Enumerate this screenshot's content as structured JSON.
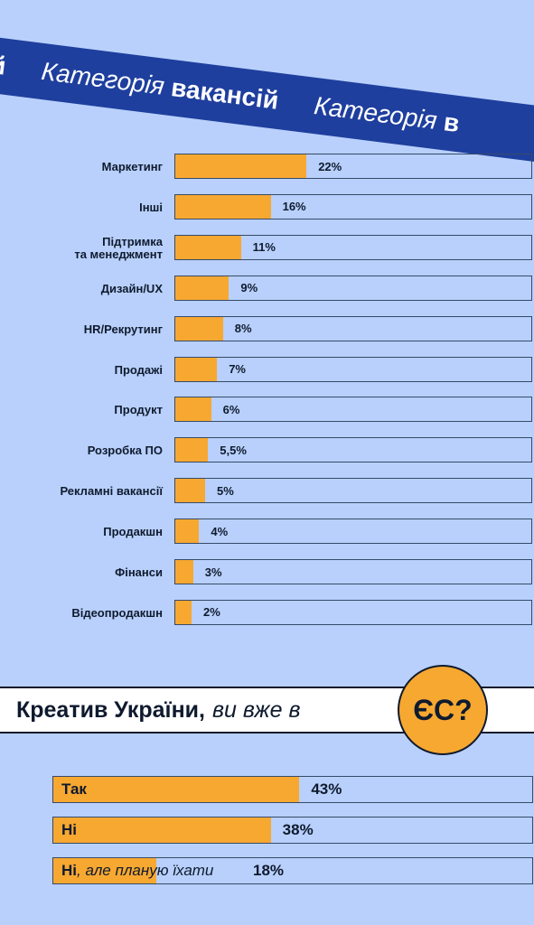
{
  "banner": {
    "segments": [
      {
        "italic": "",
        "bold": "сій"
      },
      {
        "italic": "Категорія",
        "bold": "вакансій"
      },
      {
        "italic": "Категорія",
        "bold": "в"
      }
    ]
  },
  "chart_data": {
    "type": "bar",
    "categories": [
      "Маркетинг",
      "Інші",
      "Підтримка\nта менеджмент",
      "Дизайн/UX",
      "HR/Рекрутинг",
      "Продажі",
      "Продукт",
      "Розробка ПО",
      "Рекламні вакансії",
      "Продакшн",
      "Фінанси",
      "Відеопродакшн"
    ],
    "values": [
      22,
      16,
      11,
      9,
      8,
      7,
      6,
      5.5,
      5,
      4,
      3,
      2
    ],
    "value_labels": [
      "22%",
      "16%",
      "11%",
      "9%",
      "8%",
      "7%",
      "6%",
      "5,5%",
      "5%",
      "4%",
      "3%",
      "2%"
    ],
    "orientation": "horizontal",
    "colors": {
      "bar": "#f7a831",
      "track_border": "#364a6a"
    }
  },
  "question": {
    "bold": "Креатив України,",
    "italic": "ви вже в",
    "badge": "ЄС?"
  },
  "answers": [
    {
      "bold": "Так",
      "italic": "",
      "value": 43,
      "label": "43%"
    },
    {
      "bold": "Ні",
      "italic": "",
      "value": 38,
      "label": "38%"
    },
    {
      "bold": "Ні",
      "italic": ", але планую їхати",
      "value": 18,
      "label": "18%"
    }
  ],
  "colors": {
    "background": "#b8d0fb",
    "banner": "#1f3f9e",
    "accent": "#f7a831"
  }
}
